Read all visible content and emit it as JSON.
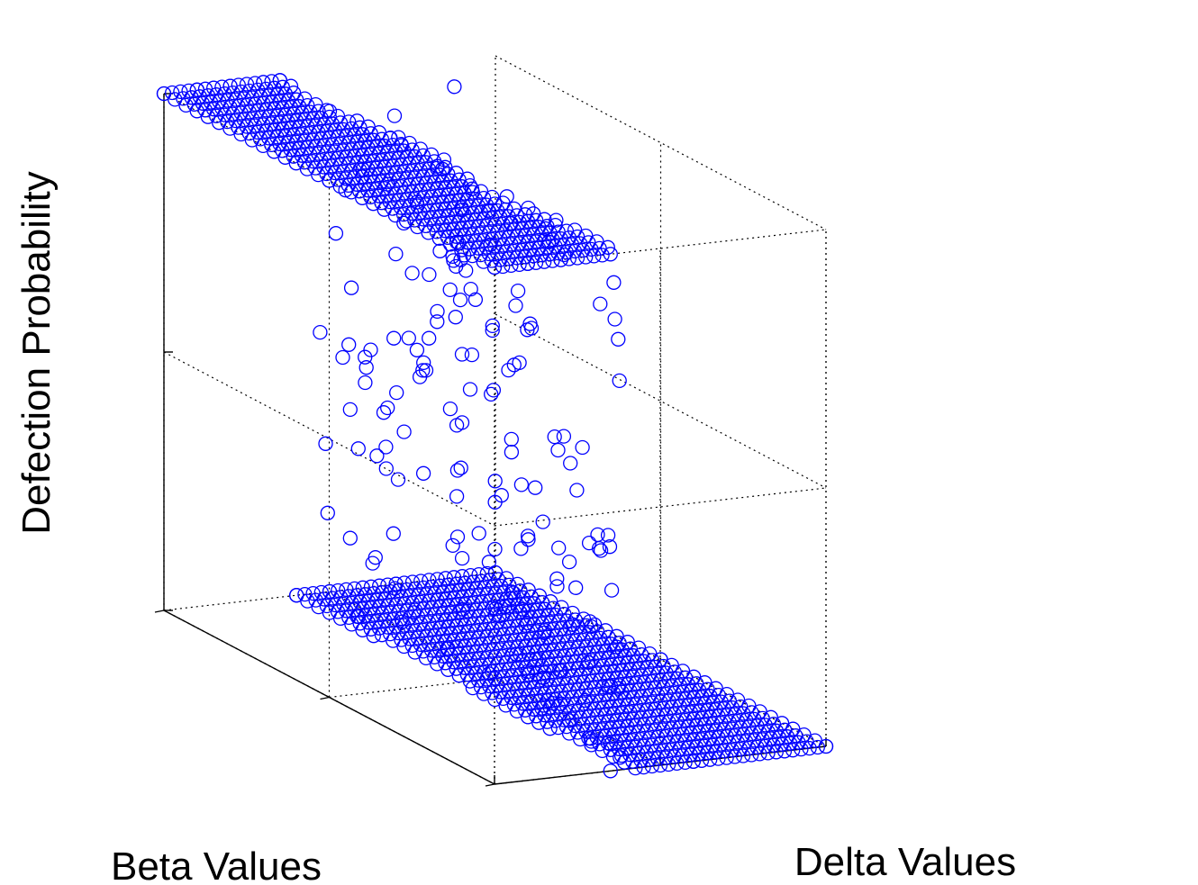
{
  "chart_data": {
    "type": "scatter",
    "projection": "3d",
    "xlabel": "Delta Values",
    "ylabel": "Beta Values",
    "zlabel": "Defection Probability",
    "xlim": [
      0,
      1
    ],
    "ylim": [
      0,
      10
    ],
    "zlim": [
      0,
      1
    ],
    "xticks": [
      "0",
      "0.5",
      "1"
    ],
    "yticks": [
      "0",
      "5",
      "10"
    ],
    "zticks": [
      "0",
      "0.5",
      "1"
    ],
    "grid": true,
    "marker": "circle-open",
    "color": "#0000ff",
    "series": [
      {
        "description_points": "points sampled on delta grid [0,1] x beta grid [0,10]; defection probability ~1 for low delta, ~0 for high delta, sharp transition near delta 0.3-0.4 with scattered intermediate values",
        "points": [
          {
            "x": 0.0,
            "y": 0.0,
            "z": 1.0
          },
          {
            "x": 0.1,
            "y": 0.0,
            "z": 1.0
          },
          {
            "x": 0.2,
            "y": 0.0,
            "z": 1.0
          },
          {
            "x": 0.3,
            "y": 0.0,
            "z": 1.0
          },
          {
            "x": 0.35,
            "y": 0.0,
            "z": 1.0
          },
          {
            "x": 0.0,
            "y": 5.0,
            "z": 1.0
          },
          {
            "x": 0.1,
            "y": 5.0,
            "z": 1.0
          },
          {
            "x": 0.2,
            "y": 5.0,
            "z": 1.0
          },
          {
            "x": 0.0,
            "y": 10.0,
            "z": 1.0
          },
          {
            "x": 0.1,
            "y": 10.0,
            "z": 1.0
          },
          {
            "x": 0.2,
            "y": 10.0,
            "z": 1.0
          },
          {
            "x": 0.45,
            "y": 0.5,
            "z": 0.95
          },
          {
            "x": 0.5,
            "y": 1.0,
            "z": 0.85
          },
          {
            "x": 0.55,
            "y": 1.5,
            "z": 0.7
          },
          {
            "x": 0.6,
            "y": 2.0,
            "z": 0.55
          },
          {
            "x": 0.65,
            "y": 2.5,
            "z": 0.4
          },
          {
            "x": 0.7,
            "y": 3.0,
            "z": 0.3
          },
          {
            "x": 0.75,
            "y": 3.5,
            "z": 0.2
          },
          {
            "x": 0.8,
            "y": 1.0,
            "z": 0.75
          },
          {
            "x": 0.6,
            "y": 4.0,
            "z": 0.3
          },
          {
            "x": 0.5,
            "y": 5.0,
            "z": 0.25
          },
          {
            "x": 0.45,
            "y": 6.0,
            "z": 0.5
          },
          {
            "x": 0.4,
            "y": 7.0,
            "z": 0.35
          },
          {
            "x": 0.35,
            "y": 8.0,
            "z": 0.2
          },
          {
            "x": 0.3,
            "y": 9.0,
            "z": 0.1
          },
          {
            "x": 0.4,
            "y": 0.0,
            "z": 0.0
          },
          {
            "x": 0.5,
            "y": 0.0,
            "z": 0.0
          },
          {
            "x": 0.7,
            "y": 0.0,
            "z": 0.0
          },
          {
            "x": 1.0,
            "y": 0.0,
            "z": 0.0
          },
          {
            "x": 0.5,
            "y": 5.0,
            "z": 0.0
          },
          {
            "x": 0.7,
            "y": 5.0,
            "z": 0.0
          },
          {
            "x": 1.0,
            "y": 5.0,
            "z": 0.0
          },
          {
            "x": 0.35,
            "y": 10.0,
            "z": 0.0
          },
          {
            "x": 0.6,
            "y": 10.0,
            "z": 0.0
          },
          {
            "x": 1.0,
            "y": 10.0,
            "z": 0.0
          }
        ]
      }
    ]
  }
}
